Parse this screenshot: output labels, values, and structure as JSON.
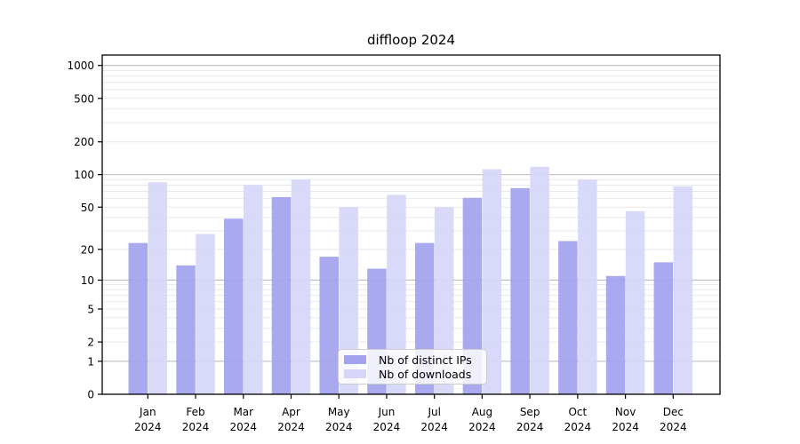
{
  "figure": {
    "title": "diffloop 2024"
  },
  "chart_data": {
    "type": "bar",
    "title": "diffloop 2024",
    "year_label": "2024",
    "months": [
      "Jan",
      "Feb",
      "Mar",
      "Apr",
      "May",
      "Jun",
      "Jul",
      "Aug",
      "Sep",
      "Oct",
      "Nov",
      "Dec"
    ],
    "categories": [
      "Jan 2024",
      "Feb 2024",
      "Mar 2024",
      "Apr 2024",
      "May 2024",
      "Jun 2024",
      "Jul 2024",
      "Aug 2024",
      "Sep 2024",
      "Oct 2024",
      "Nov 2024",
      "Dec 2024"
    ],
    "series": [
      {
        "name": "Nb of distinct IPs",
        "color": "#a2a2ef",
        "values": [
          23,
          14,
          39,
          62,
          17,
          13,
          23,
          61,
          75,
          24,
          11,
          15
        ]
      },
      {
        "name": "Nb of downloads",
        "color": "#d6d6f8",
        "values": [
          85,
          28,
          80,
          90,
          50,
          65,
          50,
          112,
          118,
          90,
          46,
          78
        ]
      }
    ],
    "xlabel": "",
    "ylabel": "",
    "yscale": "log1p",
    "yticks": [
      0,
      1,
      2,
      5,
      10,
      20,
      50,
      100,
      200,
      500,
      1000
    ],
    "ylim": [
      0,
      1244
    ],
    "grid": true,
    "grid_major_color": "#bdbdbd",
    "grid_minor_color": "#e9e9e9",
    "legend_position": "lower center"
  }
}
